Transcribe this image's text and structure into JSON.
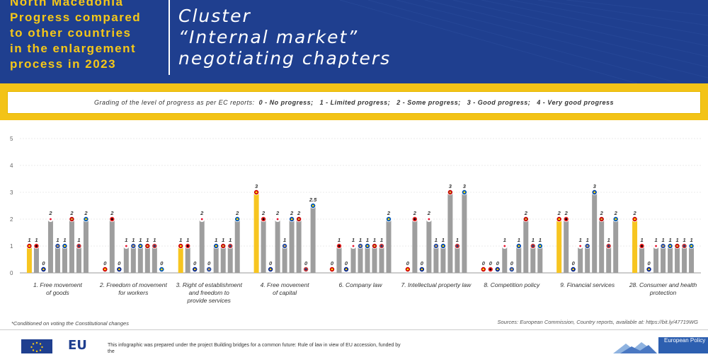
{
  "header": {
    "left_lines": [
      "North Macedonia",
      "Progress compared",
      "to other countries",
      "in the enlargement",
      "process in 2023"
    ],
    "right_lines": [
      "Cluster",
      "“Internal market”",
      "negotiating chapters"
    ]
  },
  "legend": {
    "prefix": "Grading of the level of progress as per EC reports:",
    "items": [
      "0 - No progress;",
      "1 - Limited progress;",
      "2 - Some progress;",
      "3 - Good progress;",
      "4 - Very good progress"
    ]
  },
  "note": "*Conditioned on voting the Constitutional changes",
  "source": "Sources: European Commission, Country reports, available at: https://bit.ly/47719WG",
  "footer": {
    "eu_logo_text": "EU",
    "text_line1": "This infographic was prepared under the project Building bridges for a common future: Rule of law in view of EU accession, funded by the",
    "epc_text": "European Policy"
  },
  "colors": {
    "header_bg": "#1f3f8f",
    "header_accent": "#f6c818",
    "band": "#f3c317",
    "highlight_bar": "#f7c520",
    "other_bar": "#9e9e9e",
    "label_red": "#b22234"
  },
  "chart_data": {
    "type": "bar",
    "ylim": [
      0,
      5
    ],
    "yticks": [
      0,
      1,
      2,
      3,
      4,
      5
    ],
    "highlighted_bar_index": 0,
    "flag_markers": [
      "north-macedonia",
      "albania",
      "bosnia-herzegovina",
      "georgia",
      "kosovo",
      "moldova",
      "montenegro",
      "serbia",
      "ukraine"
    ],
    "groups": [
      {
        "label_lines": [
          "1. Free movement",
          "of goods"
        ],
        "values": [
          1,
          1,
          0,
          2,
          1,
          1,
          2,
          1,
          2
        ],
        "labels": [
          "1",
          "1",
          "0",
          "2",
          "1",
          "1",
          "2",
          "1",
          "2"
        ]
      },
      {
        "label_lines": [
          "2. Freedom of movement",
          "for workers"
        ],
        "values": [
          0,
          2,
          0,
          1,
          1,
          1,
          1,
          1,
          0
        ],
        "labels": [
          "0",
          "2",
          "0",
          "1",
          "1",
          "1",
          "1",
          "1",
          "0"
        ]
      },
      {
        "label_lines": [
          "3. Right of establishment",
          "and freedom to",
          "provide services"
        ],
        "values": [
          1,
          1,
          0,
          2,
          0,
          1,
          1,
          1,
          2
        ],
        "labels": [
          "1",
          "1",
          "0",
          "2",
          "0",
          "1",
          "1",
          "1",
          "2"
        ]
      },
      {
        "label_lines": [
          "4. Free movement",
          "of capital"
        ],
        "values": [
          3,
          2,
          0,
          2,
          1,
          2,
          2,
          0,
          2.5
        ],
        "labels": [
          "3",
          "2",
          "0",
          "2",
          "1",
          "2",
          "2",
          "0",
          "2.5"
        ]
      },
      {
        "label_lines": [
          "6. Company law"
        ],
        "values": [
          0,
          1,
          0,
          1,
          1,
          1,
          1,
          1,
          2
        ],
        "labels": [
          "0",
          "1",
          "0",
          "1",
          "1",
          "1",
          "1",
          "1",
          "2"
        ]
      },
      {
        "label_lines": [
          "7. Intellectual property law"
        ],
        "values": [
          0,
          2,
          0,
          2,
          1,
          1,
          3,
          1,
          3
        ],
        "labels": [
          "0",
          "2",
          "0",
          "2",
          "1",
          "1",
          "3",
          "1",
          "3"
        ]
      },
      {
        "label_lines": [
          "8. Competition policy"
        ],
        "values": [
          0,
          0,
          0,
          1,
          0,
          1,
          2,
          1,
          1
        ],
        "labels": [
          "0",
          "0",
          "0",
          "1",
          "0",
          "1",
          "2",
          "1",
          "1"
        ]
      },
      {
        "label_lines": [
          "9. Financial services"
        ],
        "values": [
          2,
          2,
          0,
          1,
          1,
          3,
          2,
          1,
          2
        ],
        "labels": [
          "2",
          "2",
          "0",
          "1",
          "1",
          "3",
          "2",
          "1",
          "2"
        ]
      },
      {
        "label_lines": [
          "28. Consumer and health",
          "protection"
        ],
        "values": [
          2,
          1,
          0,
          1,
          1,
          1,
          1,
          1,
          1
        ],
        "labels": [
          "2",
          "1",
          "0",
          "1",
          "1",
          "1",
          "1",
          "1",
          "1"
        ]
      }
    ]
  }
}
